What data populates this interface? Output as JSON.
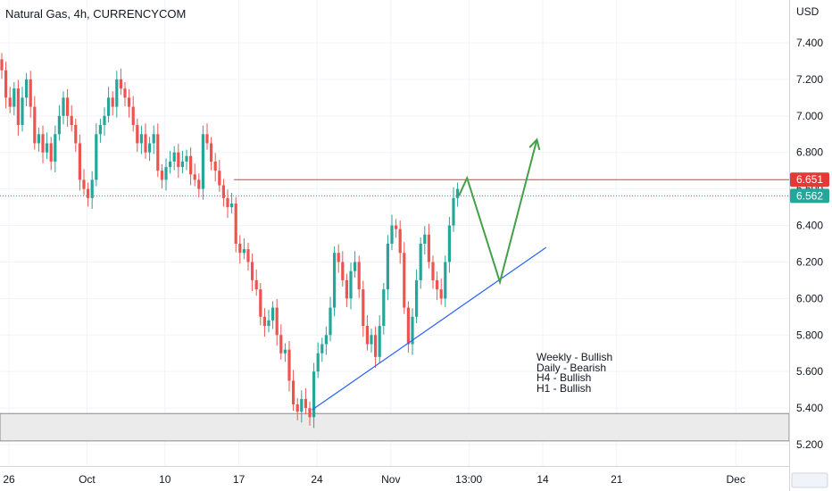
{
  "title": "Natural Gas, 4h, CURRENCYCOM",
  "currency": "USD",
  "colors": {
    "up": "#26a69a",
    "down": "#ef5350",
    "resistance": "#e53935",
    "current_price": "#26a69a",
    "trendline": "#2962ff",
    "projection": "#43a047",
    "demand_zone": "#ebebeb"
  },
  "notes": [
    "Weekly - Bullish",
    "Daily - Bearish",
    "H4 - Bullish",
    "H1 - Bullish"
  ],
  "chart_data": {
    "type": "candlestick",
    "title": "Natural Gas, 4h, CURRENCYCOM",
    "ylabel": "USD",
    "ylim": [
      5.15,
      7.6
    ],
    "y_ticks": [
      5.2,
      5.4,
      5.6,
      5.8,
      6.0,
      6.2,
      6.4,
      6.6,
      6.8,
      7.0,
      7.2,
      7.4
    ],
    "x_ticks": [
      {
        "label": "26",
        "index": 0
      },
      {
        "label": "Oct",
        "index": 19
      },
      {
        "label": "10",
        "index": 38
      },
      {
        "label": "17",
        "index": 56
      },
      {
        "label": "24",
        "index": 75
      },
      {
        "label": "Nov",
        "index": 93
      },
      {
        "label": "13:00",
        "index": 112
      },
      {
        "label": "14",
        "index": 130
      },
      {
        "label": "21",
        "index": 148
      },
      {
        "label": "Dec",
        "index": 177
      }
    ],
    "closes": [
      7.25,
      7.1,
      7.05,
      7.15,
      6.95,
      7.1,
      7.2,
      7.05,
      6.85,
      6.9,
      6.8,
      6.85,
      6.75,
      6.9,
      7.0,
      7.1,
      7.0,
      6.95,
      6.85,
      6.65,
      6.6,
      6.55,
      6.65,
      6.9,
      6.95,
      7.0,
      7.1,
      7.05,
      7.2,
      7.15,
      7.1,
      7.05,
      6.95,
      6.85,
      6.9,
      6.8,
      6.85,
      6.9,
      6.7,
      6.65,
      6.72,
      6.75,
      6.8,
      6.72,
      6.75,
      6.78,
      6.68,
      6.65,
      6.6,
      6.9,
      6.85,
      6.75,
      6.7,
      6.62,
      6.55,
      6.5,
      6.52,
      6.3,
      6.25,
      6.27,
      6.2,
      6.1,
      6.05,
      5.9,
      5.85,
      5.88,
      5.95,
      5.8,
      5.7,
      5.72,
      5.55,
      5.42,
      5.38,
      5.45,
      5.4,
      5.35,
      5.6,
      5.7,
      5.75,
      5.8,
      5.95,
      6.25,
      6.2,
      6.1,
      6.0,
      6.15,
      6.2,
      6.05,
      5.85,
      5.75,
      5.8,
      5.68,
      5.85,
      6.05,
      6.3,
      6.4,
      6.38,
      6.25,
      5.95,
      5.75,
      5.9,
      6.1,
      6.3,
      6.35,
      6.2,
      6.1,
      6.05,
      6.0,
      6.2,
      6.4,
      6.55,
      6.6
    ],
    "resistance": 6.651,
    "current_price": 6.562,
    "demand_zone": [
      5.22,
      5.37
    ],
    "trendline": {
      "from": {
        "index": 76,
        "price": 5.39
      },
      "to": {
        "index": 133,
        "price": 6.28
      }
    },
    "projection": [
      {
        "index": 110,
        "price": 6.562
      },
      {
        "index": 112,
        "price": 6.66
      },
      {
        "index": 120,
        "price": 6.09
      },
      {
        "index": 129,
        "price": 6.87
      }
    ]
  }
}
